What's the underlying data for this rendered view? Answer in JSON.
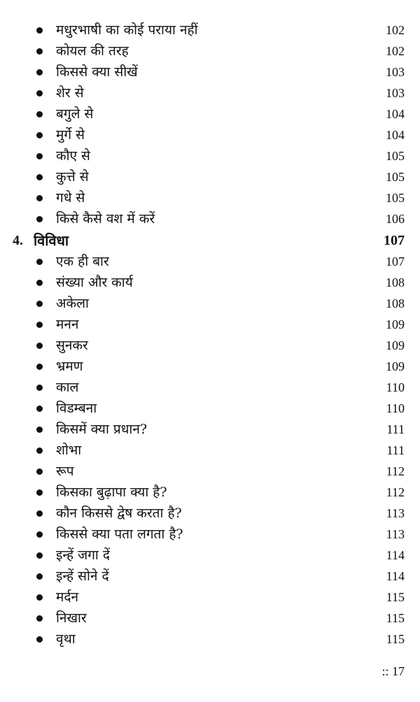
{
  "section_items_before": [
    {
      "label": "मधुरभाषी का कोई पराया नहीं",
      "page": "102"
    },
    {
      "label": "कोयल की तरह",
      "page": "102"
    },
    {
      "label": "किससे क्या सीखें",
      "page": "103"
    },
    {
      "label": "शेर से",
      "page": "103"
    },
    {
      "label": "बगुले से",
      "page": "104"
    },
    {
      "label": "मुर्गे से",
      "page": "104"
    },
    {
      "label": "कौए से",
      "page": "105"
    },
    {
      "label": "कुत्ते से",
      "page": "105"
    },
    {
      "label": "गधे से",
      "page": "105"
    },
    {
      "label": "किसे कैसे वश में करें",
      "page": "106"
    }
  ],
  "chapter": {
    "number": "4.",
    "title": "विविधा",
    "page": "107"
  },
  "chapter_items": [
    {
      "label": "एक ही बार",
      "page": "107"
    },
    {
      "label": "संख्या और कार्य",
      "page": "108"
    },
    {
      "label": "अकेला",
      "page": "108"
    },
    {
      "label": "मनन",
      "page": "109"
    },
    {
      "label": "सुनकर",
      "page": "109"
    },
    {
      "label": "भ्रमण",
      "page": "109"
    },
    {
      "label": "काल",
      "page": "110"
    },
    {
      "label": "विडम्बना",
      "page": "110"
    },
    {
      "label": "किसमें क्या प्रधान?",
      "page": "111"
    },
    {
      "label": "शोभा",
      "page": "111"
    },
    {
      "label": "रूप",
      "page": "112"
    },
    {
      "label": "किसका बुढ़ापा क्या है?",
      "page": "112"
    },
    {
      "label": "कौन किससे द्वेष करता है?",
      "page": "113"
    },
    {
      "label": "किससे क्या पता लगता है?",
      "page": "113"
    },
    {
      "label": "इन्हें जगा दें",
      "page": "114"
    },
    {
      "label": "इन्हें सोने दें",
      "page": "114"
    },
    {
      "label": "मर्दन",
      "page": "115"
    },
    {
      "label": "निखार",
      "page": "115"
    },
    {
      "label": "वृथा",
      "page": "115"
    }
  ],
  "footer": {
    "page_marker": ":: 17"
  }
}
